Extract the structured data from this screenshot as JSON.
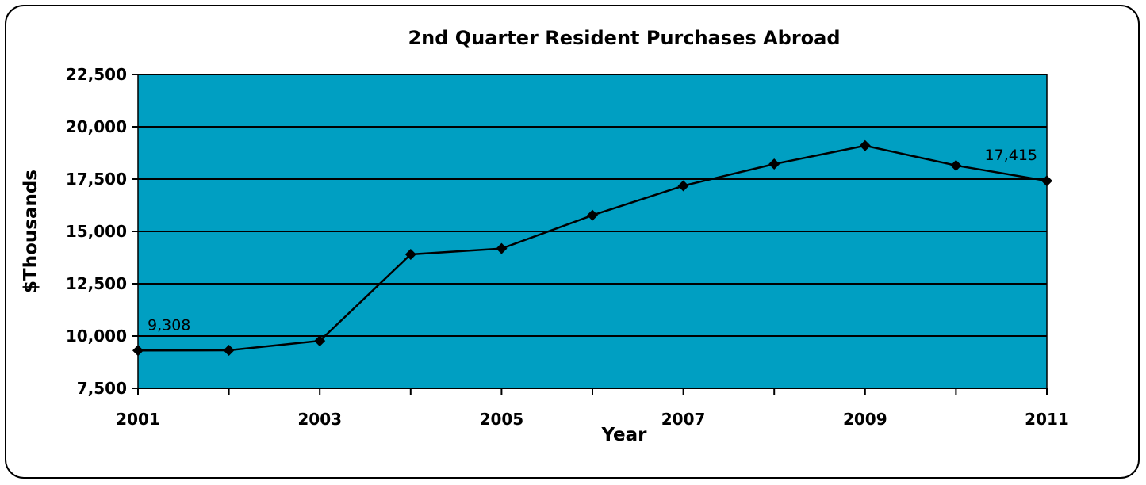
{
  "chart_data": {
    "type": "line",
    "title": "2nd Quarter Resident Purchases Abroad",
    "xlabel": "Year",
    "ylabel": "$Thousands",
    "x": [
      2001,
      2002,
      2003,
      2004,
      2005,
      2006,
      2007,
      2008,
      2009,
      2010,
      2011
    ],
    "values": [
      9308,
      9320,
      9770,
      13900,
      14180,
      15770,
      17180,
      18220,
      19100,
      18150,
      17415
    ],
    "x_tick_labels": [
      "2001",
      "2003",
      "2005",
      "2007",
      "2009",
      "2011"
    ],
    "x_tick_values": [
      2001,
      2003,
      2005,
      2007,
      2009,
      2011
    ],
    "y_tick_labels": [
      "7,500",
      "10,000",
      "12,500",
      "15,000",
      "17,500",
      "20,000",
      "22,500"
    ],
    "y_tick_values": [
      7500,
      10000,
      12500,
      15000,
      17500,
      20000,
      22500
    ],
    "ylim": [
      7500,
      22500
    ],
    "xlim": [
      2001,
      2011
    ],
    "grid": true,
    "legend": "none",
    "data_labels": [
      {
        "text": "9,308",
        "x": 2001,
        "y": 9308,
        "placement": "above-right"
      },
      {
        "text": "17,415",
        "x": 2011,
        "y": 17415,
        "placement": "above-left"
      }
    ],
    "colors": {
      "plot_background": "#009fc2",
      "line": "#000000",
      "marker": "#000000",
      "gridline": "#000000"
    }
  }
}
